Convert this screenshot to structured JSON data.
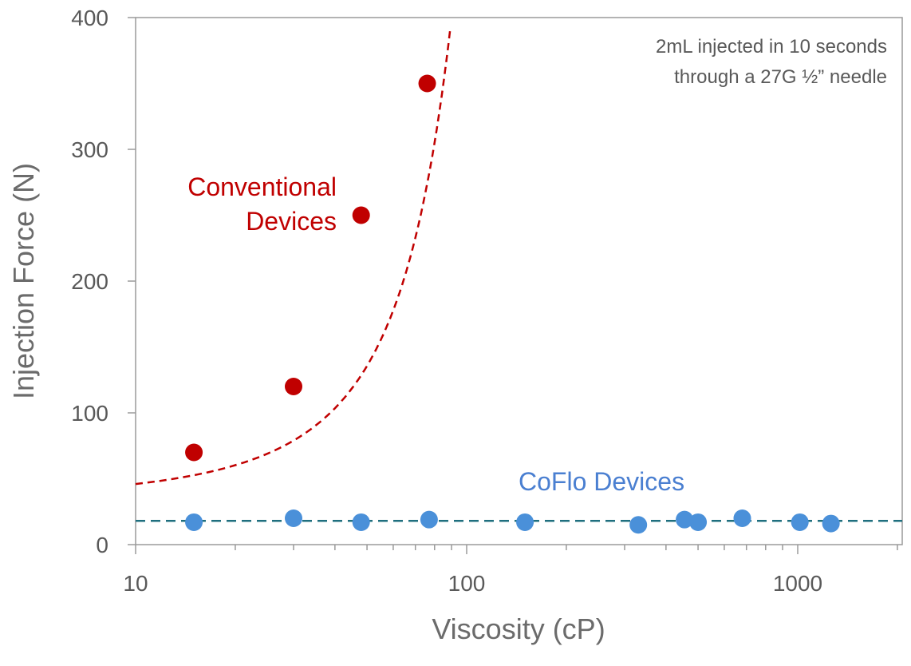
{
  "chart_data": {
    "type": "scatter",
    "xlabel": "Viscosity (cP)",
    "ylabel": "Injection Force (N)",
    "xscale": "log",
    "xlim": [
      10,
      2000
    ],
    "ylim": [
      0,
      400
    ],
    "xticks": [
      10,
      100,
      1000
    ],
    "xtick_labels": [
      "10",
      "100",
      "1000"
    ],
    "yticks": [
      0,
      100,
      200,
      300,
      400
    ],
    "ytick_labels": [
      "0",
      "100",
      "200",
      "300",
      "400"
    ],
    "grid": false,
    "annotations": [
      "2mL injected in 10 seconds",
      "through a 27G ½” needle"
    ],
    "series": [
      {
        "name": "Conventional Devices",
        "label_lines": [
          "Conventional",
          "Devices"
        ],
        "color": "#c00000",
        "x": [
          15,
          30,
          48,
          76
        ],
        "y": [
          70,
          120,
          250,
          350
        ],
        "trendline": {
          "style": "dashed",
          "kind": "exponential",
          "x": [
            10,
            90
          ],
          "y": [
            46,
            400
          ]
        }
      },
      {
        "name": "CoFlo Devices",
        "label_lines": [
          "CoFlo Devices"
        ],
        "color": "#4a90d9",
        "x": [
          15,
          30,
          48,
          77,
          150,
          330,
          455,
          500,
          680,
          1015,
          1260
        ],
        "y": [
          17,
          20,
          17,
          19,
          17,
          15,
          19,
          17,
          20,
          17,
          16
        ],
        "trendline": {
          "style": "dashed",
          "kind": "constant",
          "color": "#1f6f7f",
          "y": 18
        }
      }
    ]
  }
}
